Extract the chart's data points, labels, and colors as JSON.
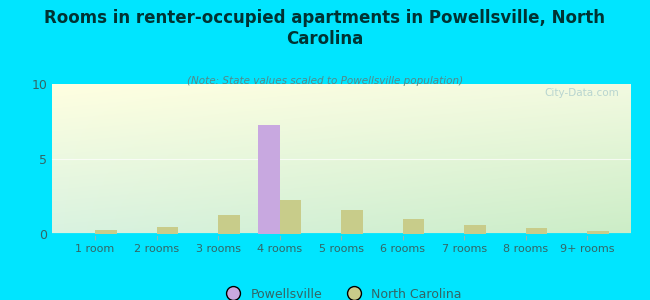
{
  "title": "Rooms in renter-occupied apartments in Powellsville, North\nCarolina",
  "subtitle": "(Note: State values scaled to Powellsville population)",
  "categories": [
    "1 room",
    "2 rooms",
    "3 rooms",
    "4 rooms",
    "5 rooms",
    "6 rooms",
    "7 rooms",
    "8 rooms",
    "9+ rooms"
  ],
  "powellsville_values": [
    0,
    0,
    0,
    7.3,
    0,
    0,
    0,
    0,
    0
  ],
  "nc_values": [
    0.3,
    0.5,
    1.3,
    2.3,
    1.6,
    1.0,
    0.6,
    0.4,
    0.2
  ],
  "powellsville_color": "#c8a8e0",
  "nc_color": "#c8cc8a",
  "background_color": "#00e5ff",
  "ylim": [
    0,
    10
  ],
  "yticks": [
    0,
    5,
    10
  ],
  "bar_width": 0.35,
  "legend_powellsville": "Powellsville",
  "legend_nc": "North Carolina",
  "watermark": "City-Data.com",
  "title_fontsize": 12,
  "subtitle_fontsize": 7.5,
  "tick_fontsize": 8,
  "ytick_fontsize": 9
}
